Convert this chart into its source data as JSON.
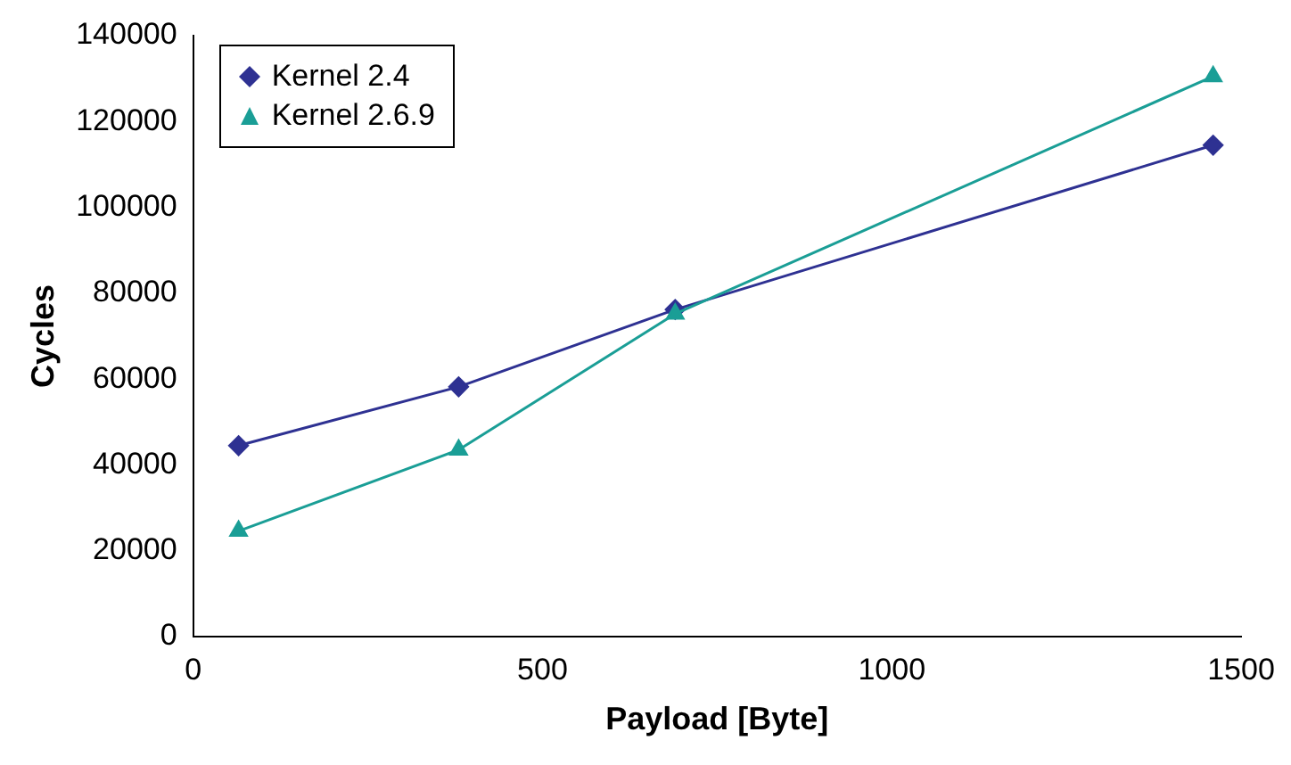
{
  "chart_data": {
    "type": "line",
    "xlabel": "Payload [Byte]",
    "ylabel": "Cycles",
    "xlim": [
      0,
      1500
    ],
    "xticks": [
      0,
      500,
      1000,
      1500
    ],
    "ylim": [
      0,
      140000
    ],
    "yticks": [
      0,
      20000,
      40000,
      60000,
      80000,
      100000,
      120000,
      140000
    ],
    "grid": false,
    "legend": "top left",
    "line_style": "solid",
    "series": [
      {
        "name": "Kernel 2.4",
        "color": "#2e3192",
        "marker": "diamond",
        "x": [
          65,
          380,
          690,
          1460
        ],
        "values": [
          44500,
          58200,
          76200,
          114500
        ]
      },
      {
        "name": "Kernel 2.6.9",
        "color": "#1a9e96",
        "marker": "triangle",
        "x": [
          65,
          380,
          690,
          1460
        ],
        "values": [
          24600,
          43500,
          75200,
          130500
        ]
      }
    ]
  }
}
